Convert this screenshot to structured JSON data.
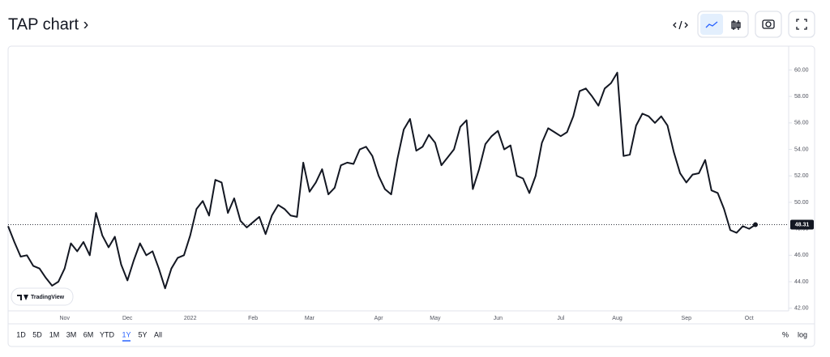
{
  "header": {
    "title": "TAP chart ›"
  },
  "chart_data": {
    "type": "line",
    "watermark": "TradingView",
    "categories": [
      null,
      null,
      null,
      null,
      null,
      null,
      null,
      null,
      null,
      "Nov",
      null,
      null,
      null,
      null,
      null,
      null,
      null,
      null,
      null,
      "Dec",
      null,
      null,
      null,
      null,
      null,
      null,
      null,
      null,
      null,
      "2022",
      null,
      null,
      null,
      null,
      null,
      null,
      null,
      null,
      null,
      "Feb",
      null,
      null,
      null,
      null,
      null,
      null,
      null,
      null,
      "Mar",
      null,
      null,
      null,
      null,
      null,
      null,
      null,
      null,
      null,
      null,
      "Apr",
      null,
      null,
      null,
      null,
      null,
      null,
      null,
      null,
      "May",
      null,
      null,
      null,
      null,
      null,
      null,
      null,
      null,
      null,
      "Jun",
      null,
      null,
      null,
      null,
      null,
      null,
      null,
      null,
      null,
      "Jul",
      null,
      null,
      null,
      null,
      null,
      null,
      null,
      null,
      "Aug",
      null,
      null,
      null,
      null,
      null,
      null,
      null,
      null,
      null,
      null,
      "Sep",
      null,
      null,
      null,
      null,
      null,
      null,
      null,
      null,
      null,
      "Oct",
      null
    ],
    "series": [
      {
        "name": "TAP",
        "color": "#131722",
        "values": [
          48.2,
          47.0,
          45.9,
          46.0,
          45.2,
          45.0,
          44.3,
          43.7,
          44.0,
          45.0,
          46.9,
          46.3,
          47.0,
          46.0,
          49.2,
          47.5,
          46.6,
          47.4,
          45.3,
          44.1,
          45.6,
          46.9,
          46.0,
          46.3,
          45.0,
          43.5,
          45.0,
          45.8,
          46.0,
          47.5,
          49.5,
          50.1,
          49.0,
          51.7,
          51.5,
          49.2,
          50.3,
          48.6,
          48.1,
          48.5,
          48.9,
          47.6,
          49.0,
          49.8,
          49.5,
          49.0,
          48.9,
          53.0,
          50.8,
          51.5,
          52.5,
          50.6,
          51.1,
          52.8,
          53.0,
          52.9,
          54.0,
          54.2,
          53.5,
          52.0,
          51.0,
          50.6,
          53.3,
          55.5,
          56.3,
          53.9,
          54.2,
          55.1,
          54.5,
          52.8,
          53.4,
          54.0,
          55.7,
          56.2,
          51.0,
          52.5,
          54.4,
          55.0,
          55.4,
          54.0,
          54.3,
          52.0,
          51.8,
          50.7,
          52.0,
          54.5,
          55.6,
          55.3,
          55.0,
          55.3,
          56.5,
          58.4,
          58.6,
          58.0,
          57.3,
          58.6,
          59.0,
          59.8,
          53.5,
          53.6,
          55.8,
          56.7,
          56.5,
          56.0,
          56.5,
          55.8,
          53.8,
          52.2,
          51.5,
          52.1,
          52.2,
          53.2,
          50.9,
          50.7,
          49.5,
          47.9,
          47.7,
          48.2,
          48.0,
          48.31
        ]
      }
    ],
    "last_price": 48.31,
    "ylim": [
      41.8,
      61.8
    ],
    "yticks": [
      {
        "value": 42,
        "label": "42.00"
      },
      {
        "value": 44,
        "label": "44.00"
      },
      {
        "value": 46,
        "label": "46.00"
      },
      {
        "value": 48,
        "label": "48.00"
      },
      {
        "value": 50,
        "label": "50.00"
      },
      {
        "value": 52,
        "label": "52.00"
      },
      {
        "value": 54,
        "label": "54.00"
      },
      {
        "value": 56,
        "label": "56.00"
      },
      {
        "value": 58,
        "label": "58.00"
      },
      {
        "value": 60,
        "label": "60.00"
      }
    ],
    "grid": false
  },
  "ranges": [
    "1D",
    "5D",
    "1M",
    "3M",
    "6M",
    "YTD",
    "1Y",
    "5Y",
    "All"
  ],
  "active_range": 6,
  "scale_options": [
    "%",
    "log"
  ]
}
